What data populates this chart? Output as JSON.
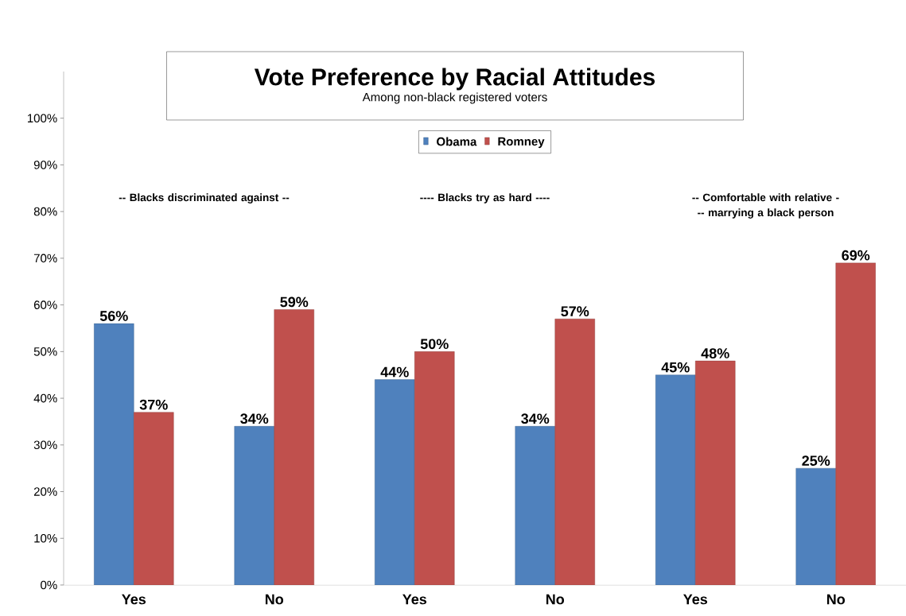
{
  "chart_data": {
    "type": "bar",
    "title": "Vote Preference by Racial Attitudes",
    "subtitle": "Among non-black registered voters",
    "categories": [
      "Yes",
      "No",
      "Yes",
      "No",
      "Yes",
      "No"
    ],
    "series": [
      {
        "name": "Obama",
        "color": "#4f81bd",
        "values": [
          56,
          34,
          44,
          34,
          45,
          25
        ],
        "value_labels": [
          "56%",
          "34%",
          "44%",
          "34%",
          "45%",
          "25%"
        ]
      },
      {
        "name": "Romney",
        "color": "#c0504d",
        "values": [
          37,
          59,
          50,
          57,
          48,
          69
        ],
        "value_labels": [
          "37%",
          "59%",
          "50%",
          "57%",
          "48%",
          "69%"
        ]
      }
    ],
    "annotations": [
      "-- Blacks discriminated against --",
      "---- Blacks try as hard ----",
      "-- Comfortable with relative --- marrying a black person"
    ],
    "ylim": [
      0,
      110
    ],
    "yticks": [
      {
        "value": 0,
        "label": "0%"
      },
      {
        "value": 10,
        "label": "10%"
      },
      {
        "value": 20,
        "label": "20%"
      },
      {
        "value": 30,
        "label": "30%"
      },
      {
        "value": 40,
        "label": "40%"
      },
      {
        "value": 50,
        "label": "50%"
      },
      {
        "value": 60,
        "label": "60%"
      },
      {
        "value": 70,
        "label": "70%"
      },
      {
        "value": 80,
        "label": "80%"
      },
      {
        "value": 90,
        "label": "90%"
      },
      {
        "value": 100,
        "label": "100%"
      }
    ],
    "legend": "top",
    "grid": false
  }
}
